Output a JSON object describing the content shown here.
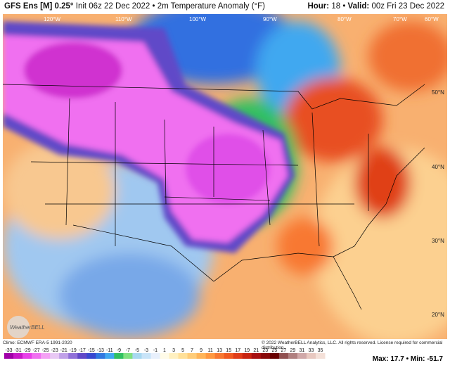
{
  "header": {
    "model": "GFS Ens [M] 0.25°",
    "init": "Init 06z 22 Dec 2022",
    "separator": "•",
    "field": "2m Temperature Anomaly (°F)",
    "hour_label": "Hour:",
    "hour": 18,
    "valid_label": "Valid:",
    "valid": "00z Fri 23 Dec 2022"
  },
  "map": {
    "longitudes": [
      "120°W",
      "110°W",
      "100°W",
      "90°W",
      "80°W",
      "70°W",
      "60°W"
    ],
    "latitudes": [
      "50°N",
      "40°N",
      "30°N",
      "20°N"
    ],
    "logo": "WeatherBELL"
  },
  "footer": {
    "climo": "Climo: ECMWF ERA-5 1991-2020",
    "copyright": "© 2022 WeatherBELL Analytics, LLC. All rights reserved. License required for commercial distribution.",
    "max_label": "Max:",
    "max": 17.7,
    "min_label": "Min:",
    "min": -51.7
  },
  "colorbar": {
    "labels": [
      -33,
      -31,
      -29,
      -27,
      -25,
      -23,
      -21,
      -19,
      -17,
      -15,
      -13,
      -11,
      -9,
      -7,
      -5,
      -3,
      -1,
      1,
      3,
      5,
      7,
      9,
      11,
      13,
      15,
      17,
      19,
      21,
      23,
      25,
      27,
      29,
      31,
      33,
      35
    ],
    "colors": [
      "#a000a8",
      "#c818c8",
      "#e840e8",
      "#f070f0",
      "#f4a0f4",
      "#e8c8f4",
      "#c0a0e8",
      "#9070d8",
      "#6048c8",
      "#3848d0",
      "#3078e0",
      "#40a8f0",
      "#30c060",
      "#80e080",
      "#a8d8f0",
      "#c8e4f8",
      "#e8f0fc",
      "#fffbe8",
      "#fff0c0",
      "#ffe098",
      "#ffcc78",
      "#ffb458",
      "#ff9840",
      "#f87830",
      "#f05a20",
      "#e03c18",
      "#c82410",
      "#a81010",
      "#880808",
      "#680000",
      "#905050",
      "#b08080",
      "#d0a8a8",
      "#e8c8c0",
      "#f4e0d8"
    ]
  }
}
